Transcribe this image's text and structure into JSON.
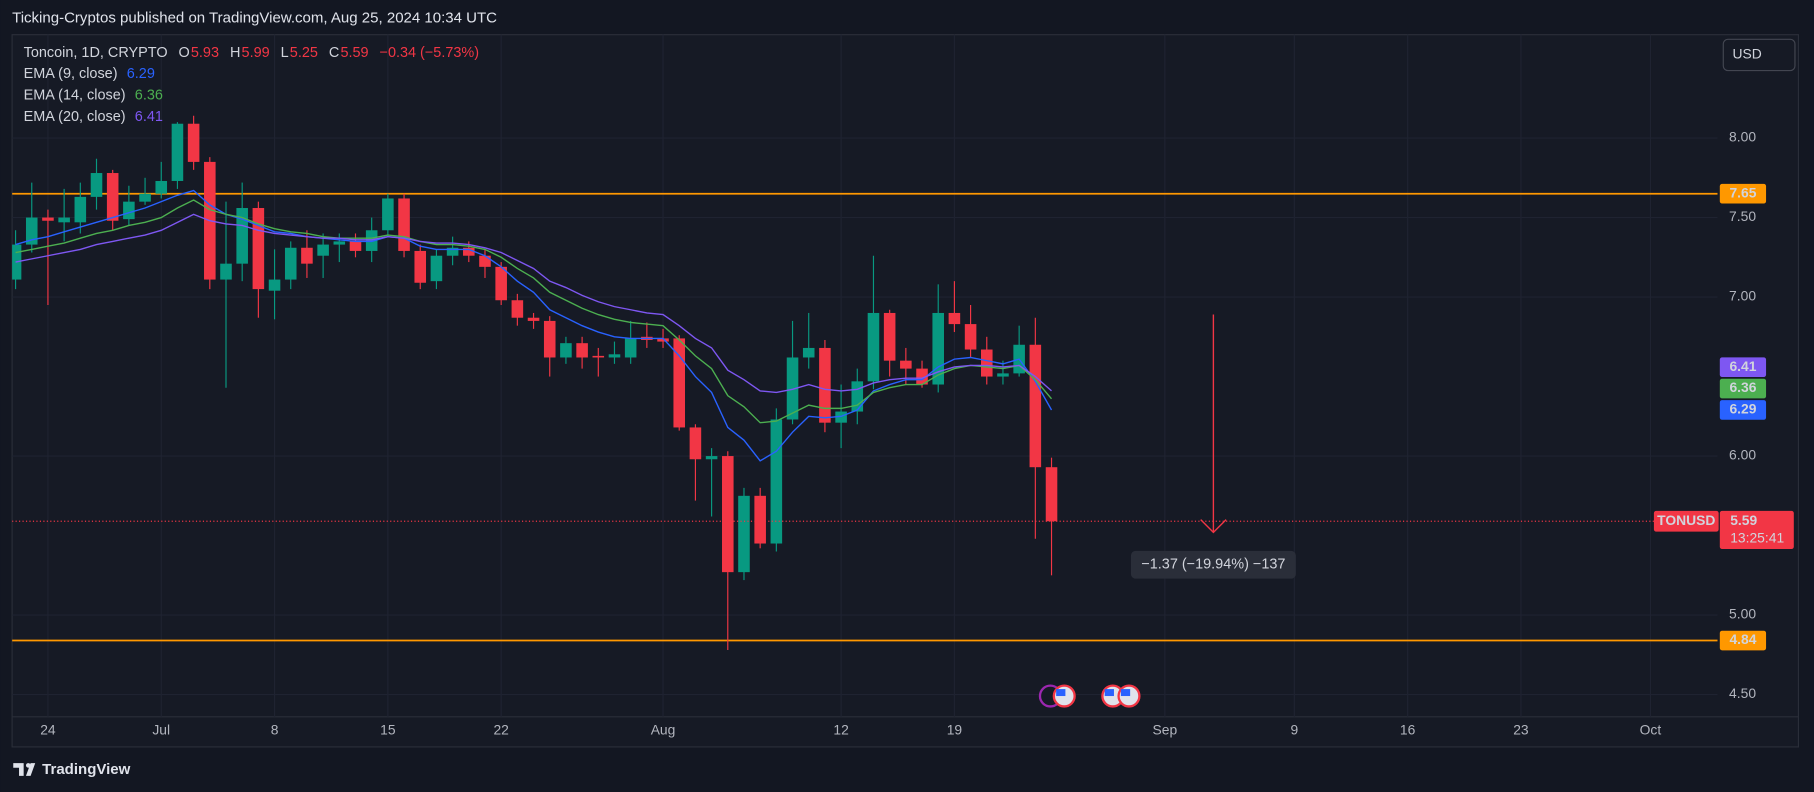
{
  "header": "Ticking-Cryptos published on TradingView.com, Aug 25, 2024 10:34 UTC",
  "footer": "TradingView",
  "chart_data": {
    "type": "candlestick",
    "symbol": "Toncoin, 1D, CRYPTO",
    "symbol_code": "TONUSD",
    "currency": "USD",
    "countdown": "13:25:41",
    "ohlc_labels": [
      "O",
      "H",
      "L",
      "C"
    ],
    "change": "−0.34 (−5.73%)",
    "up_color": "#089981",
    "down_color": "#f23645",
    "x": [
      "2024-06-22",
      "2024-06-23",
      "2024-06-24",
      "2024-06-25",
      "2024-06-26",
      "2024-06-27",
      "2024-06-28",
      "2024-06-29",
      "2024-06-30",
      "2024-07-01",
      "2024-07-02",
      "2024-07-03",
      "2024-07-04",
      "2024-07-05",
      "2024-07-06",
      "2024-07-07",
      "2024-07-08",
      "2024-07-09",
      "2024-07-10",
      "2024-07-11",
      "2024-07-12",
      "2024-07-13",
      "2024-07-14",
      "2024-07-15",
      "2024-07-16",
      "2024-07-17",
      "2024-07-18",
      "2024-07-19",
      "2024-07-20",
      "2024-07-21",
      "2024-07-22",
      "2024-07-23",
      "2024-07-24",
      "2024-07-25",
      "2024-07-26",
      "2024-07-27",
      "2024-07-28",
      "2024-07-29",
      "2024-07-30",
      "2024-07-31",
      "2024-08-01",
      "2024-08-02",
      "2024-08-03",
      "2024-08-04",
      "2024-08-05",
      "2024-08-06",
      "2024-08-07",
      "2024-08-08",
      "2024-08-09",
      "2024-08-10",
      "2024-08-11",
      "2024-08-12",
      "2024-08-13",
      "2024-08-14",
      "2024-08-15",
      "2024-08-16",
      "2024-08-17",
      "2024-08-18",
      "2024-08-19",
      "2024-08-20",
      "2024-08-21",
      "2024-08-22",
      "2024-08-23",
      "2024-08-24",
      "2024-08-25"
    ],
    "open": [
      7.11,
      7.33,
      7.5,
      7.47,
      7.47,
      7.63,
      7.78,
      7.49,
      7.6,
      7.65,
      7.73,
      8.09,
      7.85,
      7.11,
      7.21,
      7.56,
      7.04,
      7.11,
      7.31,
      7.26,
      7.33,
      7.35,
      7.29,
      7.42,
      7.62,
      7.29,
      7.1,
      7.26,
      7.31,
      7.26,
      7.19,
      6.98,
      6.87,
      6.85,
      6.62,
      6.71,
      6.63,
      6.62,
      6.62,
      6.75,
      6.74,
      6.74,
      6.18,
      5.98,
      6.0,
      5.27,
      5.75,
      5.45,
      6.23,
      6.62,
      6.68,
      6.21,
      6.28,
      6.47,
      6.9,
      6.6,
      6.55,
      6.45,
      6.9,
      6.83,
      6.67,
      6.5,
      6.52,
      6.7,
      5.93
    ],
    "high": [
      7.42,
      7.72,
      7.55,
      7.68,
      7.72,
      7.87,
      7.8,
      7.7,
      7.75,
      7.85,
      8.1,
      8.14,
      7.88,
      7.6,
      7.72,
      7.6,
      7.3,
      7.35,
      7.42,
      7.4,
      7.4,
      7.4,
      7.5,
      7.65,
      7.65,
      7.33,
      7.3,
      7.38,
      7.35,
      7.3,
      7.22,
      7.02,
      6.9,
      6.88,
      6.75,
      6.75,
      6.68,
      6.72,
      6.85,
      6.84,
      6.8,
      6.76,
      6.2,
      6.05,
      6.03,
      5.8,
      5.8,
      6.3,
      6.85,
      6.9,
      6.73,
      6.45,
      6.55,
      7.26,
      6.92,
      6.68,
      6.6,
      7.08,
      7.1,
      6.95,
      6.75,
      6.6,
      6.82,
      6.87,
      5.99
    ],
    "low": [
      7.05,
      7.28,
      6.95,
      7.35,
      7.4,
      7.55,
      7.42,
      7.45,
      7.58,
      7.62,
      7.68,
      7.8,
      7.05,
      6.43,
      7.1,
      6.87,
      6.86,
      7.05,
      7.12,
      7.12,
      7.22,
      7.25,
      7.22,
      7.38,
      7.25,
      7.05,
      7.05,
      7.2,
      7.22,
      7.12,
      6.95,
      6.82,
      6.8,
      6.5,
      6.58,
      6.55,
      6.5,
      6.58,
      6.58,
      6.68,
      6.68,
      6.16,
      5.72,
      5.62,
      4.78,
      5.22,
      5.42,
      5.4,
      6.2,
      6.55,
      6.15,
      6.05,
      6.2,
      6.42,
      6.5,
      6.45,
      6.43,
      6.4,
      6.78,
      6.62,
      6.45,
      6.45,
      6.5,
      5.48,
      5.25
    ],
    "close": [
      7.33,
      7.5,
      7.48,
      7.5,
      7.63,
      7.78,
      7.48,
      7.6,
      7.65,
      7.73,
      8.09,
      7.85,
      7.11,
      7.21,
      7.56,
      7.05,
      7.11,
      7.31,
      7.21,
      7.33,
      7.35,
      7.29,
      7.42,
      7.62,
      7.29,
      7.09,
      7.26,
      7.31,
      7.26,
      7.19,
      6.98,
      6.87,
      6.85,
      6.62,
      6.71,
      6.62,
      6.62,
      6.64,
      6.74,
      6.73,
      6.72,
      6.18,
      5.98,
      6.0,
      5.27,
      5.75,
      5.45,
      6.23,
      6.62,
      6.68,
      6.21,
      6.28,
      6.47,
      6.9,
      6.6,
      6.55,
      6.45,
      6.9,
      6.83,
      6.67,
      6.5,
      6.52,
      6.7,
      5.93,
      5.59
    ],
    "series": [
      {
        "name": "EMA (9, close)",
        "color": "#2962ff",
        "values": [
          7.33,
          7.36,
          7.38,
          7.41,
          7.44,
          7.47,
          7.5,
          7.53,
          7.56,
          7.6,
          7.64,
          7.67,
          7.58,
          7.52,
          7.49,
          7.45,
          7.41,
          7.4,
          7.38,
          7.37,
          7.36,
          7.35,
          7.35,
          7.38,
          7.37,
          7.32,
          7.3,
          7.3,
          7.3,
          7.26,
          7.19,
          7.1,
          7.03,
          6.92,
          6.87,
          6.82,
          6.78,
          6.75,
          6.74,
          6.74,
          6.74,
          6.63,
          6.5,
          6.4,
          6.18,
          6.1,
          5.97,
          6.03,
          6.15,
          6.25,
          6.24,
          6.25,
          6.29,
          6.41,
          6.45,
          6.48,
          6.48,
          6.56,
          6.61,
          6.62,
          6.6,
          6.58,
          6.61,
          6.47,
          6.29
        ]
      },
      {
        "name": "EMA (14, close)",
        "color": "#4caf50",
        "values": [
          7.28,
          7.3,
          7.32,
          7.34,
          7.37,
          7.4,
          7.42,
          7.45,
          7.47,
          7.5,
          7.56,
          7.61,
          7.55,
          7.52,
          7.5,
          7.46,
          7.43,
          7.41,
          7.4,
          7.38,
          7.37,
          7.37,
          7.37,
          7.39,
          7.38,
          7.35,
          7.33,
          7.33,
          7.32,
          7.3,
          7.25,
          7.18,
          7.12,
          7.03,
          6.98,
          6.93,
          6.89,
          6.86,
          6.84,
          6.83,
          6.82,
          6.73,
          6.63,
          6.55,
          6.38,
          6.31,
          6.21,
          6.22,
          6.27,
          6.32,
          6.3,
          6.3,
          6.32,
          6.4,
          6.43,
          6.45,
          6.45,
          6.51,
          6.55,
          6.57,
          6.56,
          6.55,
          6.57,
          6.48,
          6.36
        ]
      },
      {
        "name": "EMA (20, close)",
        "color": "#7e57f2",
        "values": [
          7.22,
          7.24,
          7.26,
          7.28,
          7.3,
          7.33,
          7.35,
          7.37,
          7.39,
          7.42,
          7.47,
          7.52,
          7.48,
          7.46,
          7.45,
          7.42,
          7.4,
          7.39,
          7.38,
          7.37,
          7.37,
          7.36,
          7.36,
          7.38,
          7.37,
          7.35,
          7.34,
          7.34,
          7.33,
          7.31,
          7.28,
          7.23,
          7.18,
          7.1,
          7.06,
          7.01,
          6.97,
          6.94,
          6.92,
          6.9,
          6.89,
          6.82,
          6.74,
          6.68,
          6.54,
          6.48,
          6.41,
          6.4,
          6.42,
          6.45,
          6.42,
          6.41,
          6.42,
          6.46,
          6.48,
          6.49,
          6.49,
          6.53,
          6.56,
          6.57,
          6.57,
          6.56,
          6.57,
          6.5,
          6.41
        ]
      }
    ],
    "levels": [
      {
        "value": 7.65,
        "color": "#ff9800"
      },
      {
        "value": 4.84,
        "color": "#ff9800"
      }
    ],
    "annotation": {
      "text": "−1.37 (−19.94%) −137",
      "x": "2024-09-04",
      "from": 6.89,
      "to": 5.52,
      "color": "#f23645"
    },
    "xlim": [
      "2024-06-22",
      "2024-10-05"
    ],
    "xticks": [
      {
        "value": "2024-06-24",
        "label": "24"
      },
      {
        "value": "2024-07-01",
        "label": "Jul"
      },
      {
        "value": "2024-07-08",
        "label": "8"
      },
      {
        "value": "2024-07-15",
        "label": "15"
      },
      {
        "value": "2024-07-22",
        "label": "22"
      },
      {
        "value": "2024-08-01",
        "label": "Aug"
      },
      {
        "value": "2024-08-12",
        "label": "12"
      },
      {
        "value": "2024-08-19",
        "label": "19"
      },
      {
        "value": "2024-09-01",
        "label": "Sep"
      },
      {
        "value": "2024-09-09",
        "label": "9"
      },
      {
        "value": "2024-09-16",
        "label": "16"
      },
      {
        "value": "2024-09-23",
        "label": "23"
      },
      {
        "value": "2024-10-01",
        "label": "Oct"
      }
    ],
    "ylim": [
      4.36,
      8.65
    ],
    "yticks": [
      {
        "value": 4.5,
        "label": "4.50"
      },
      {
        "value": 5,
        "label": "5.00"
      },
      {
        "value": 6,
        "label": "6.00"
      },
      {
        "value": 7,
        "label": "7.00"
      },
      {
        "value": 7.5,
        "label": "7.50"
      },
      {
        "value": 8,
        "label": "8.00"
      }
    ],
    "grid": true
  }
}
